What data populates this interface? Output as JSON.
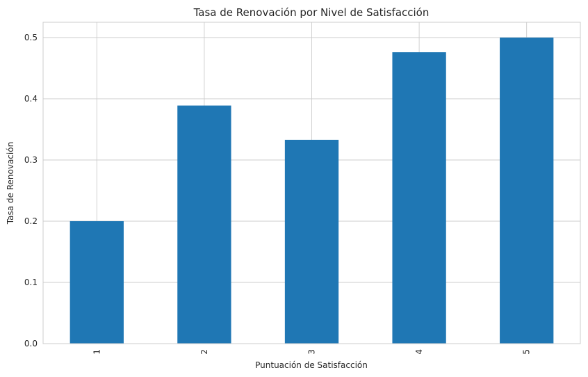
{
  "chart_data": {
    "type": "bar",
    "title": "Tasa de Renovación por Nivel de Satisfacción",
    "xlabel": "Puntuación de Satisfacción",
    "ylabel": "Tasa de Renovación",
    "categories": [
      "1",
      "2",
      "3",
      "4",
      "5"
    ],
    "values": [
      0.2,
      0.389,
      0.333,
      0.476,
      0.5
    ],
    "ylim": [
      0,
      0.525
    ],
    "yticks": [
      0.0,
      0.1,
      0.2,
      0.3,
      0.4,
      0.5
    ],
    "ytick_labels": [
      "0.0",
      "0.1",
      "0.2",
      "0.3",
      "0.4",
      "0.5"
    ],
    "grid": true,
    "bar_color": "#1f77b4",
    "grid_color": "#cccccc",
    "xtick_rotation": "vertical"
  }
}
